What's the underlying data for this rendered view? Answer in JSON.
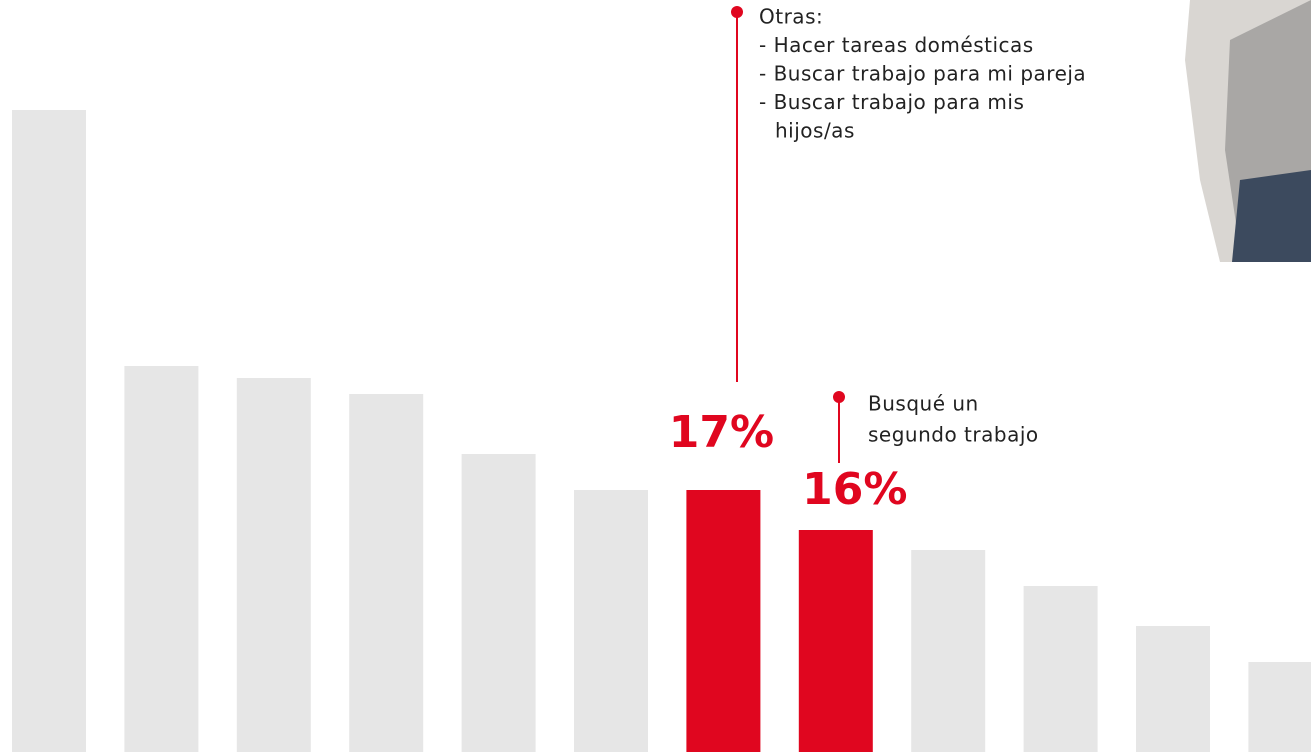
{
  "chart_data": {
    "type": "bar",
    "categories": [
      null,
      null,
      null,
      null,
      null,
      null,
      null,
      null,
      null,
      null,
      null,
      null
    ],
    "values": [
      26.5,
      20.1,
      19.8,
      19.4,
      17.9,
      17,
      17,
      16,
      15.5,
      14.6,
      13.6,
      12.7
    ],
    "value_labels": [
      null,
      null,
      null,
      null,
      null,
      null,
      "17%",
      "16%",
      null,
      null,
      null,
      null
    ],
    "colors": [
      "#e6e6e6",
      "#e6e6e6",
      "#e6e6e6",
      "#e6e6e6",
      "#e6e6e6",
      "#e6e6e6",
      "#e0061f",
      "#e0061f",
      "#e6e6e6",
      "#e6e6e6",
      "#e6e6e6",
      "#e6e6e6"
    ],
    "ylim": [
      10.45,
      29.25
    ],
    "annotations": [
      {
        "text": [
          "Otras:",
          "- Hacer tareas domésticas",
          "- Buscar trabajo para mi pareja",
          "- Buscar trabajo para mis",
          "hijos/as"
        ]
      },
      {
        "text": [
          "Busqué un",
          "segundo trabajo"
        ]
      }
    ]
  }
}
